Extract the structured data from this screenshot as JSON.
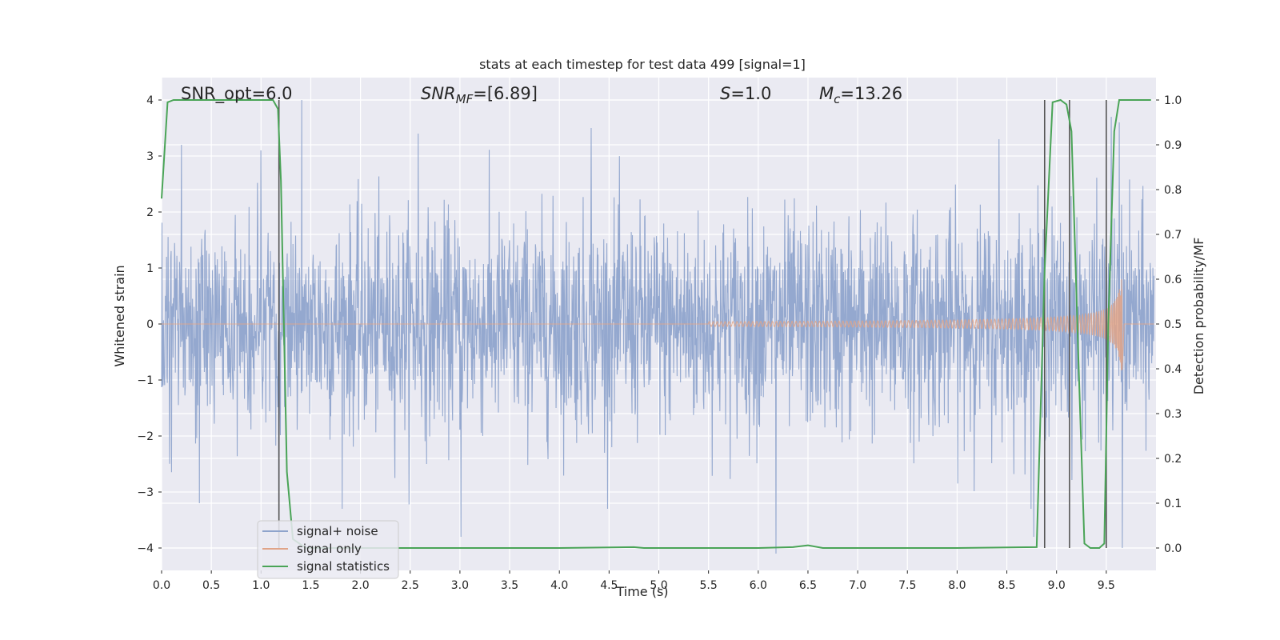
{
  "chart_data": {
    "type": "line",
    "title": "stats at each timestep for test data 499 [signal=1]",
    "xlabel": "Time (s)",
    "ylabel": "Whitened strain",
    "ylabel_right": "Detection probability/MF",
    "xlim": [
      0.0,
      10.0
    ],
    "ylim": [
      -4.4,
      4.4
    ],
    "ylim_right": [
      -0.05,
      1.05
    ],
    "x_ticks": [
      "0.0",
      "0.5",
      "1.0",
      "1.5",
      "2.0",
      "2.5",
      "3.0",
      "3.5",
      "4.0",
      "4.5",
      "5.0",
      "5.5",
      "6.0",
      "6.5",
      "7.0",
      "7.5",
      "8.0",
      "8.5",
      "9.0",
      "9.5"
    ],
    "x_tick_values": [
      0.0,
      0.5,
      1.0,
      1.5,
      2.0,
      2.5,
      3.0,
      3.5,
      4.0,
      4.5,
      5.0,
      5.5,
      6.0,
      6.5,
      7.0,
      7.5,
      8.0,
      8.5,
      9.0,
      9.5
    ],
    "y_ticks": [
      "4",
      "3",
      "2",
      "1",
      "0",
      "−1",
      "−2",
      "−3",
      "−4"
    ],
    "y_tick_values": [
      4,
      3,
      2,
      1,
      0,
      -1,
      -2,
      -3,
      -4
    ],
    "y_ticks_right": [
      "1.0",
      "0.9",
      "0.8",
      "0.7",
      "0.6",
      "0.5",
      "0.4",
      "0.3",
      "0.2",
      "0.1",
      "0.0"
    ],
    "y_tick_values_right": [
      1.0,
      0.9,
      0.8,
      0.7,
      0.6,
      0.5,
      0.4,
      0.3,
      0.2,
      0.1,
      0.0
    ],
    "grid": true,
    "legend_placement": "lower-left",
    "series": [
      {
        "name": "signal+ noise",
        "axis": "left",
        "color": "#8fa4cc",
        "kind": "noise",
        "typical_amplitude": 2.0,
        "peak_values": [
          {
            "x": 1.41,
            "y": 4.0
          },
          {
            "x": 1.0,
            "y": 3.1
          },
          {
            "x": 0.2,
            "y": 3.2
          },
          {
            "x": 2.58,
            "y": 3.4
          },
          {
            "x": 4.32,
            "y": 3.5
          },
          {
            "x": 9.55,
            "y": 3.7
          },
          {
            "x": 9.63,
            "y": 3.6
          },
          {
            "x": 8.42,
            "y": 3.3
          },
          {
            "x": 3.01,
            "y": -3.8
          },
          {
            "x": 6.18,
            "y": -4.1
          },
          {
            "x": 9.66,
            "y": -4.0
          },
          {
            "x": 8.77,
            "y": -3.8
          },
          {
            "x": 1.18,
            "y": -3.4
          },
          {
            "x": 0.38,
            "y": -3.2
          }
        ]
      },
      {
        "name": "signal only",
        "axis": "left",
        "color": "#e0a488",
        "kind": "chirp",
        "start_x": 5.5,
        "merger_x": 9.66,
        "peak_amplitude": 1.05
      },
      {
        "name": "signal statistics",
        "axis": "right",
        "color": "#4aa457",
        "kind": "line",
        "x": [
          0.0,
          0.06,
          0.12,
          0.5,
          1.0,
          1.12,
          1.17,
          1.2,
          1.26,
          1.32,
          1.45,
          2.0,
          4.0,
          4.75,
          4.85,
          6.0,
          6.35,
          6.5,
          6.65,
          8.0,
          8.8,
          8.88,
          8.96,
          9.04,
          9.1,
          9.15,
          9.22,
          9.28,
          9.34,
          9.43,
          9.48,
          9.52,
          9.58,
          9.63,
          9.7,
          9.95
        ],
        "y": [
          0.78,
          0.995,
          1.0,
          1.0,
          1.0,
          1.0,
          0.98,
          0.82,
          0.17,
          0.02,
          0.0,
          0.0,
          0.0,
          0.002,
          0.0,
          0.0,
          0.002,
          0.006,
          0.0,
          0.0,
          0.002,
          0.62,
          0.995,
          1.0,
          0.99,
          0.93,
          0.42,
          0.01,
          0.0,
          0.0,
          0.01,
          0.5,
          0.93,
          1.0,
          1.0,
          1.0
        ]
      }
    ],
    "vertical_lines": [
      1.18,
      8.88,
      9.13,
      9.5
    ],
    "vertical_line_color": "#555555",
    "annotations": [
      {
        "id": "snr_opt",
        "text": "SNR_opt=6.0"
      },
      {
        "id": "snr_mf_label",
        "text": "SNR",
        "sub": "MF",
        "text_after": "=[6.89]"
      },
      {
        "id": "s_val",
        "text": "S",
        "text_after": "=1.0"
      },
      {
        "id": "mc_val",
        "text": "M",
        "sub": "c",
        "text_after": "=13.26"
      }
    ],
    "legend": [
      "signal+ noise",
      "signal only",
      "signal statistics"
    ],
    "colors": {
      "background": "#eaeaf2",
      "grid": "#ffffff",
      "text": "#262626"
    }
  }
}
